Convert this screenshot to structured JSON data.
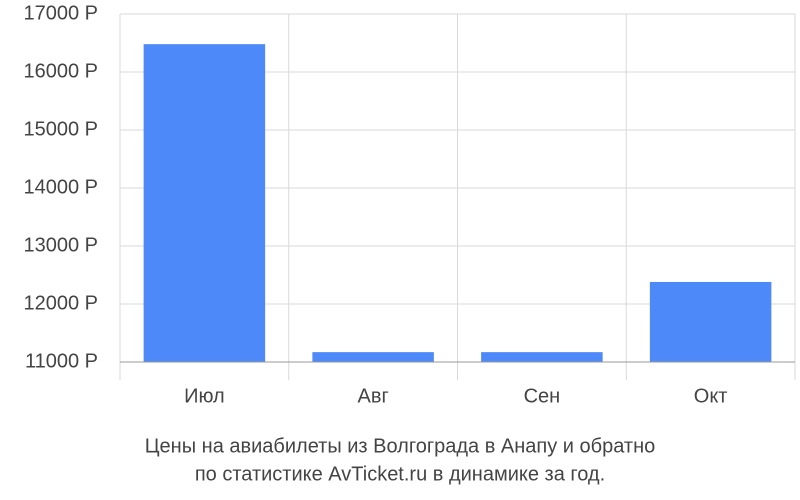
{
  "chart_data": {
    "type": "bar",
    "caption": [
      "Цены на авиабилеты из Волгограда в Анапу и обратно",
      "по статистике AvTicket.ru в динамике за год."
    ],
    "categories": [
      "Июл",
      "Авг",
      "Сен",
      "Окт"
    ],
    "values": [
      16480,
      11170,
      11170,
      12380
    ],
    "color": "#4d89f9",
    "ylim": [
      11000,
      17000
    ],
    "yticks": [
      {
        "value": 11000,
        "label": "11000 Р"
      },
      {
        "value": 12000,
        "label": "12000 Р"
      },
      {
        "value": 13000,
        "label": "13000 Р"
      },
      {
        "value": 14000,
        "label": "14000 Р"
      },
      {
        "value": 15000,
        "label": "15000 Р"
      },
      {
        "value": 16000,
        "label": "16000 Р"
      },
      {
        "value": 17000,
        "label": "17000 Р"
      }
    ],
    "grid": true
  }
}
